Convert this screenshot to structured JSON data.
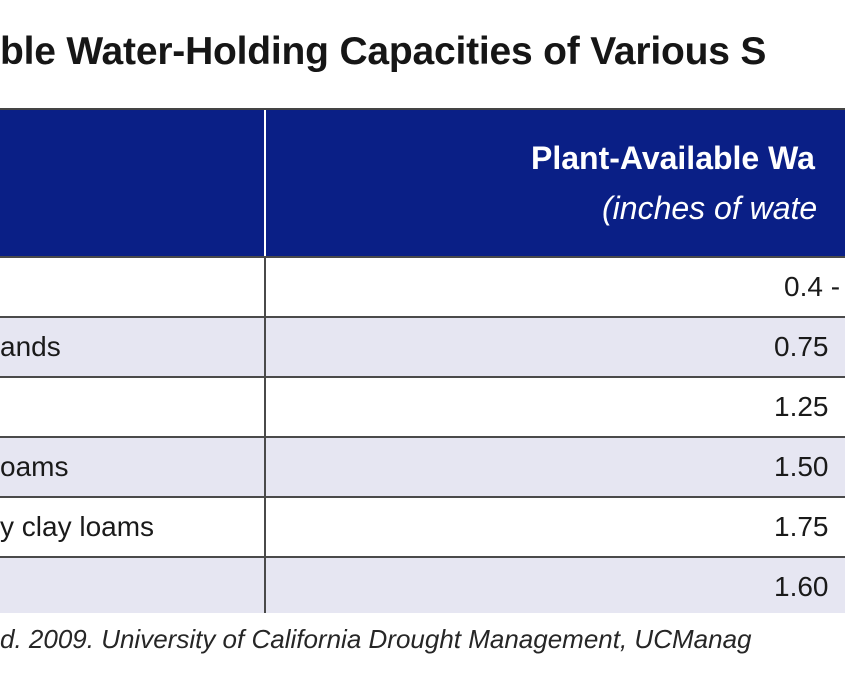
{
  "title": "ble Water-Holding Capacities of Various S",
  "table": {
    "header": {
      "col1_label": "",
      "col2_line1": "Plant-Available Wa",
      "col2_line2": "(inches of wate"
    },
    "rows": [
      {
        "soil": "",
        "value": "0.4 -"
      },
      {
        "soil": "ands",
        "value": "0.75"
      },
      {
        "soil": "",
        "value": "1.25"
      },
      {
        "soil": "oams",
        "value": "1.50"
      },
      {
        "soil": "y clay loams",
        "value": "1.75"
      },
      {
        "soil": "",
        "value": "1.60"
      }
    ]
  },
  "footnote": "d. 2009. University of California Drought Management, UCManag",
  "colors": {
    "header_bg": "#0a1f86",
    "alt_row_bg": "#e6e6f2",
    "border": "#4a4a4a"
  }
}
